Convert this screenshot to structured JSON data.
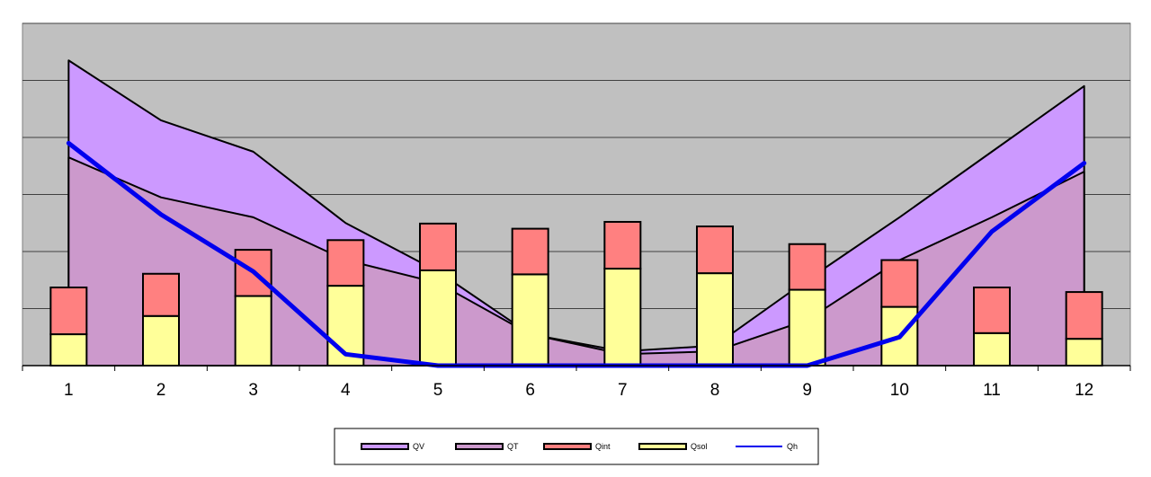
{
  "chart_data": {
    "type": "bar",
    "title": "",
    "xlabel": "",
    "ylabel": "",
    "x": [
      "1",
      "2",
      "3",
      "4",
      "5",
      "6",
      "7",
      "8",
      "9",
      "10",
      "11",
      "12"
    ],
    "ylim": [
      0,
      6
    ],
    "grid": true,
    "legend_position": "bottom",
    "colors": {
      "plot_background": "#c0c0c0",
      "QV": "#cc99ff",
      "QT": "#cc99cc",
      "Qint": "#ff8080",
      "Qsol": "#ffff99",
      "Qh": "#0000ee"
    },
    "series": [
      {
        "name": "QV",
        "kind": "area",
        "values": [
          5.35,
          4.3,
          3.75,
          2.5,
          1.65,
          0.55,
          0.25,
          0.35,
          1.5,
          2.6,
          3.75,
          4.9
        ]
      },
      {
        "name": "QT",
        "kind": "area",
        "values": [
          3.65,
          2.95,
          2.6,
          1.85,
          1.45,
          0.55,
          0.2,
          0.25,
          0.8,
          1.85,
          2.6,
          3.4
        ]
      },
      {
        "name": "Qint",
        "kind": "bar-stacked",
        "values": [
          0.82,
          0.74,
          0.81,
          0.8,
          0.82,
          0.8,
          0.82,
          0.82,
          0.8,
          0.82,
          0.8,
          0.82
        ]
      },
      {
        "name": "Qsol",
        "kind": "bar-stacked",
        "values": [
          0.55,
          0.87,
          1.22,
          1.4,
          1.67,
          1.6,
          1.7,
          1.62,
          1.33,
          1.03,
          0.57,
          0.47
        ]
      },
      {
        "name": "Qh",
        "kind": "line",
        "values": [
          3.9,
          2.65,
          1.65,
          0.2,
          0,
          0,
          0,
          0,
          0,
          0.5,
          2.35,
          3.55
        ]
      }
    ]
  },
  "legend": {
    "items": [
      {
        "label": "QV",
        "swatch": "#cc99ff",
        "kind": "box"
      },
      {
        "label": "QT",
        "swatch": "#cc99cc",
        "kind": "box"
      },
      {
        "label": "Qint",
        "swatch": "#ff8080",
        "kind": "box"
      },
      {
        "label": "Qsol",
        "swatch": "#ffff99",
        "kind": "box"
      },
      {
        "label": "Qh",
        "swatch": "#0000ee",
        "kind": "line"
      }
    ]
  }
}
